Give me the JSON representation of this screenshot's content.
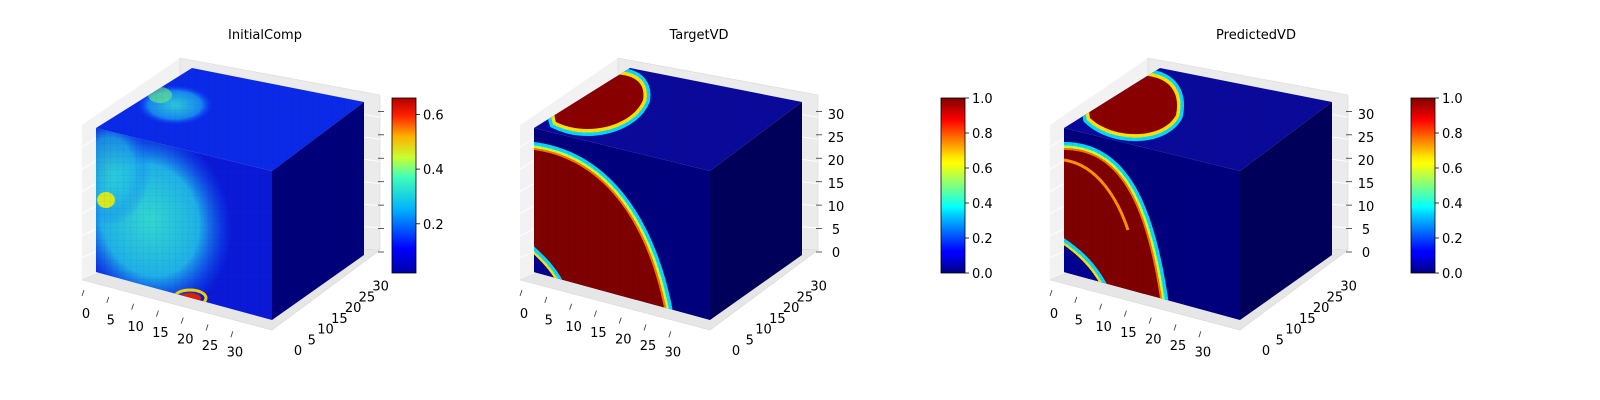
{
  "chart_data": [
    {
      "type": "heatmap",
      "title": "InitialComp",
      "x_ticks": [
        "0",
        "5",
        "10",
        "15",
        "20",
        "25",
        "30"
      ],
      "y_ticks": [
        "0",
        "5",
        "10",
        "15",
        "20",
        "25",
        "30"
      ],
      "z_ticks": [],
      "xlim": [
        0,
        32
      ],
      "ylim": [
        0,
        32
      ],
      "zlim": [
        0,
        32
      ],
      "colorbar": {
        "ticks": [
          "0.2",
          "0.4",
          "0.6"
        ],
        "tick_values": [
          0.2,
          0.4,
          0.6
        ],
        "range": [
          0.02,
          0.66
        ]
      },
      "colormap": "jet",
      "grid": true
    },
    {
      "type": "heatmap",
      "title": "TargetVD",
      "x_ticks": [
        "0",
        "5",
        "10",
        "15",
        "20",
        "25",
        "30"
      ],
      "y_ticks": [
        "0",
        "5",
        "10",
        "15",
        "20",
        "25",
        "30"
      ],
      "z_ticks": [
        "0",
        "5",
        "10",
        "15",
        "20",
        "25",
        "30"
      ],
      "xlim": [
        0,
        32
      ],
      "ylim": [
        0,
        32
      ],
      "zlim": [
        0,
        32
      ],
      "colorbar": {
        "ticks": [
          "0.0",
          "0.2",
          "0.4",
          "0.6",
          "0.8",
          "1.0"
        ],
        "tick_values": [
          0,
          0.2,
          0.4,
          0.6,
          0.8,
          1.0
        ],
        "range": [
          0,
          1
        ]
      },
      "colormap": "jet",
      "grid": true
    },
    {
      "type": "heatmap",
      "title": "PredictedVD",
      "x_ticks": [
        "0",
        "5",
        "10",
        "15",
        "20",
        "25",
        "30"
      ],
      "y_ticks": [
        "0",
        "5",
        "10",
        "15",
        "20",
        "25",
        "30"
      ],
      "z_ticks": [
        "0",
        "5",
        "10",
        "15",
        "20",
        "25",
        "30"
      ],
      "xlim": [
        0,
        32
      ],
      "ylim": [
        0,
        32
      ],
      "zlim": [
        0,
        32
      ],
      "colorbar": {
        "ticks": [
          "0.0",
          "0.2",
          "0.4",
          "0.6",
          "0.8",
          "1.0"
        ],
        "tick_values": [
          0,
          0.2,
          0.4,
          0.6,
          0.8,
          1.0
        ],
        "range": [
          0,
          1
        ]
      },
      "colormap": "jet",
      "grid": true
    }
  ]
}
